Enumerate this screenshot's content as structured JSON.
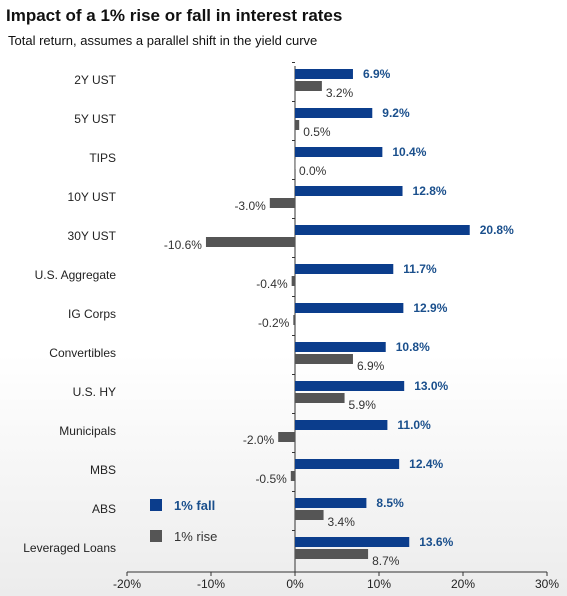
{
  "title": "Impact of a 1% rise or fall in interest rates",
  "subtitle": "Total return, assumes a parallel shift in the yield curve",
  "colors": {
    "fall": "#0b3d8c",
    "rise": "#555555",
    "axis": "#333333"
  },
  "chart_data": {
    "type": "bar",
    "orientation": "horizontal",
    "categories": [
      "2Y UST",
      "5Y UST",
      "TIPS",
      "10Y UST",
      "30Y UST",
      "U.S. Aggregate",
      "IG Corps",
      "Convertibles",
      "U.S. HY",
      "Municipals",
      "MBS",
      "ABS",
      "Leveraged Loans"
    ],
    "series": [
      {
        "name": "1% fall",
        "values": [
          6.9,
          9.2,
          10.4,
          12.8,
          20.8,
          11.7,
          12.9,
          10.8,
          13.0,
          11.0,
          12.4,
          8.5,
          13.6
        ],
        "labels": [
          "6.9%",
          "9.2%",
          "10.4%",
          "12.8%",
          "20.8%",
          "11.7%",
          "12.9%",
          "10.8%",
          "13.0%",
          "11.0%",
          "12.4%",
          "8.5%",
          "13.6%"
        ]
      },
      {
        "name": "1% rise",
        "values": [
          3.2,
          0.5,
          0.0,
          -3.0,
          -10.6,
          -0.4,
          -0.2,
          6.9,
          5.9,
          -2.0,
          -0.5,
          3.4,
          8.7
        ],
        "labels": [
          "3.2%",
          "0.5%",
          "0.0%",
          "-3.0%",
          "-10.6%",
          "-0.4%",
          "-0.2%",
          "6.9%",
          "5.9%",
          "-2.0%",
          "-0.5%",
          "3.4%",
          "8.7%"
        ]
      }
    ],
    "xlim": [
      -20,
      30
    ],
    "xticks": [
      -20,
      -10,
      0,
      10,
      20,
      30
    ],
    "xtick_labels": [
      "-20%",
      "-10%",
      "0%",
      "10%",
      "20%",
      "30%"
    ],
    "legend": {
      "placement": "bottom-left",
      "entries": [
        "1% fall",
        "1% rise"
      ]
    },
    "grid": false
  }
}
